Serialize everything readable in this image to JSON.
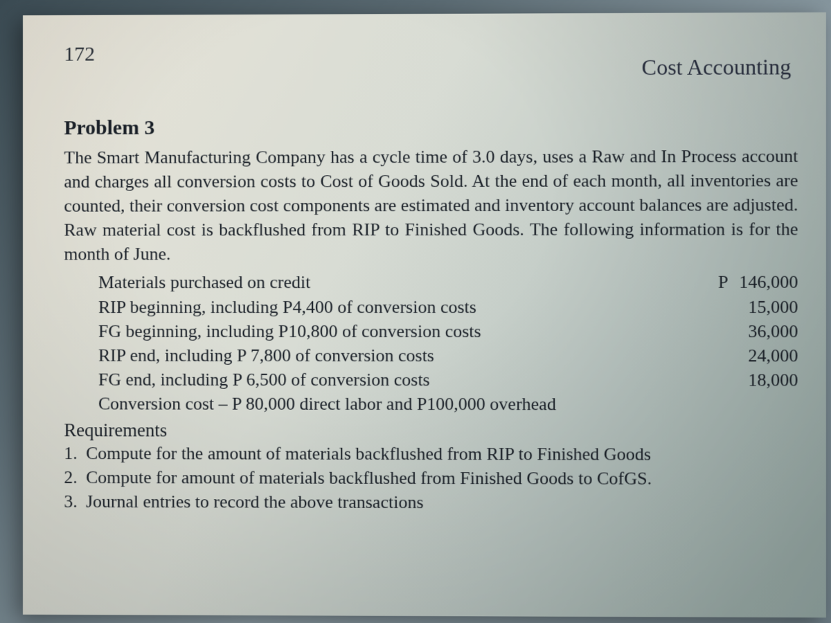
{
  "page": {
    "number": "172",
    "chapter_title": "Cost Accounting"
  },
  "problem": {
    "heading": "Problem 3",
    "body": "The Smart Manufacturing Company has a cycle time of 3.0 days, uses a Raw and In Process account and charges all conversion costs to Cost of Goods Sold. At the end of each month, all inventories are counted, their conversion cost components are estimated and inventory account balances are adjusted. Raw material cost is backflushed from RIP to Finished Goods. The following information is for the month of June."
  },
  "data_items": {
    "rows": [
      {
        "label": "Materials purchased on credit",
        "currency": "P",
        "value": "146,000"
      },
      {
        "label": "RIP beginning, including P4,400 of conversion costs",
        "currency": "",
        "value": "15,000"
      },
      {
        "label": "FG beginning, including P10,800 of conversion costs",
        "currency": "",
        "value": "36,000"
      },
      {
        "label": "RIP end, including P 7,800 of conversion costs",
        "currency": "",
        "value": "24,000"
      },
      {
        "label": "FG end, including P 6,500 of conversion costs",
        "currency": "",
        "value": "18,000"
      },
      {
        "label": "Conversion cost – P 80,000 direct labor and P100,000 overhead",
        "currency": "",
        "value": ""
      }
    ]
  },
  "requirements": {
    "heading": "Requirements",
    "items": [
      {
        "num": "1.",
        "text": "Compute for the amount of materials backflushed from RIP to Finished Goods"
      },
      {
        "num": "2.",
        "text": "Compute for amount of materials backflushed from Finished Goods to CofGS."
      },
      {
        "num": "3.",
        "text": "Journal entries to record the above transactions"
      }
    ]
  },
  "styling": {
    "body_font_family": "Georgia, Times New Roman, serif",
    "text_color": "#1a2028",
    "page_bg_gradient": [
      "#e8e4d8",
      "#d8dcd4",
      "#b8c4c0",
      "#98aca8"
    ],
    "outer_bg_gradient": [
      "#3a4a52",
      "#5a6a72",
      "#8a9aa2",
      "#6a7a82"
    ],
    "page_number_fontsize": 30,
    "chapter_title_fontsize": 32,
    "heading_fontsize": 30,
    "body_fontsize": 26,
    "line_height": 1.35
  }
}
